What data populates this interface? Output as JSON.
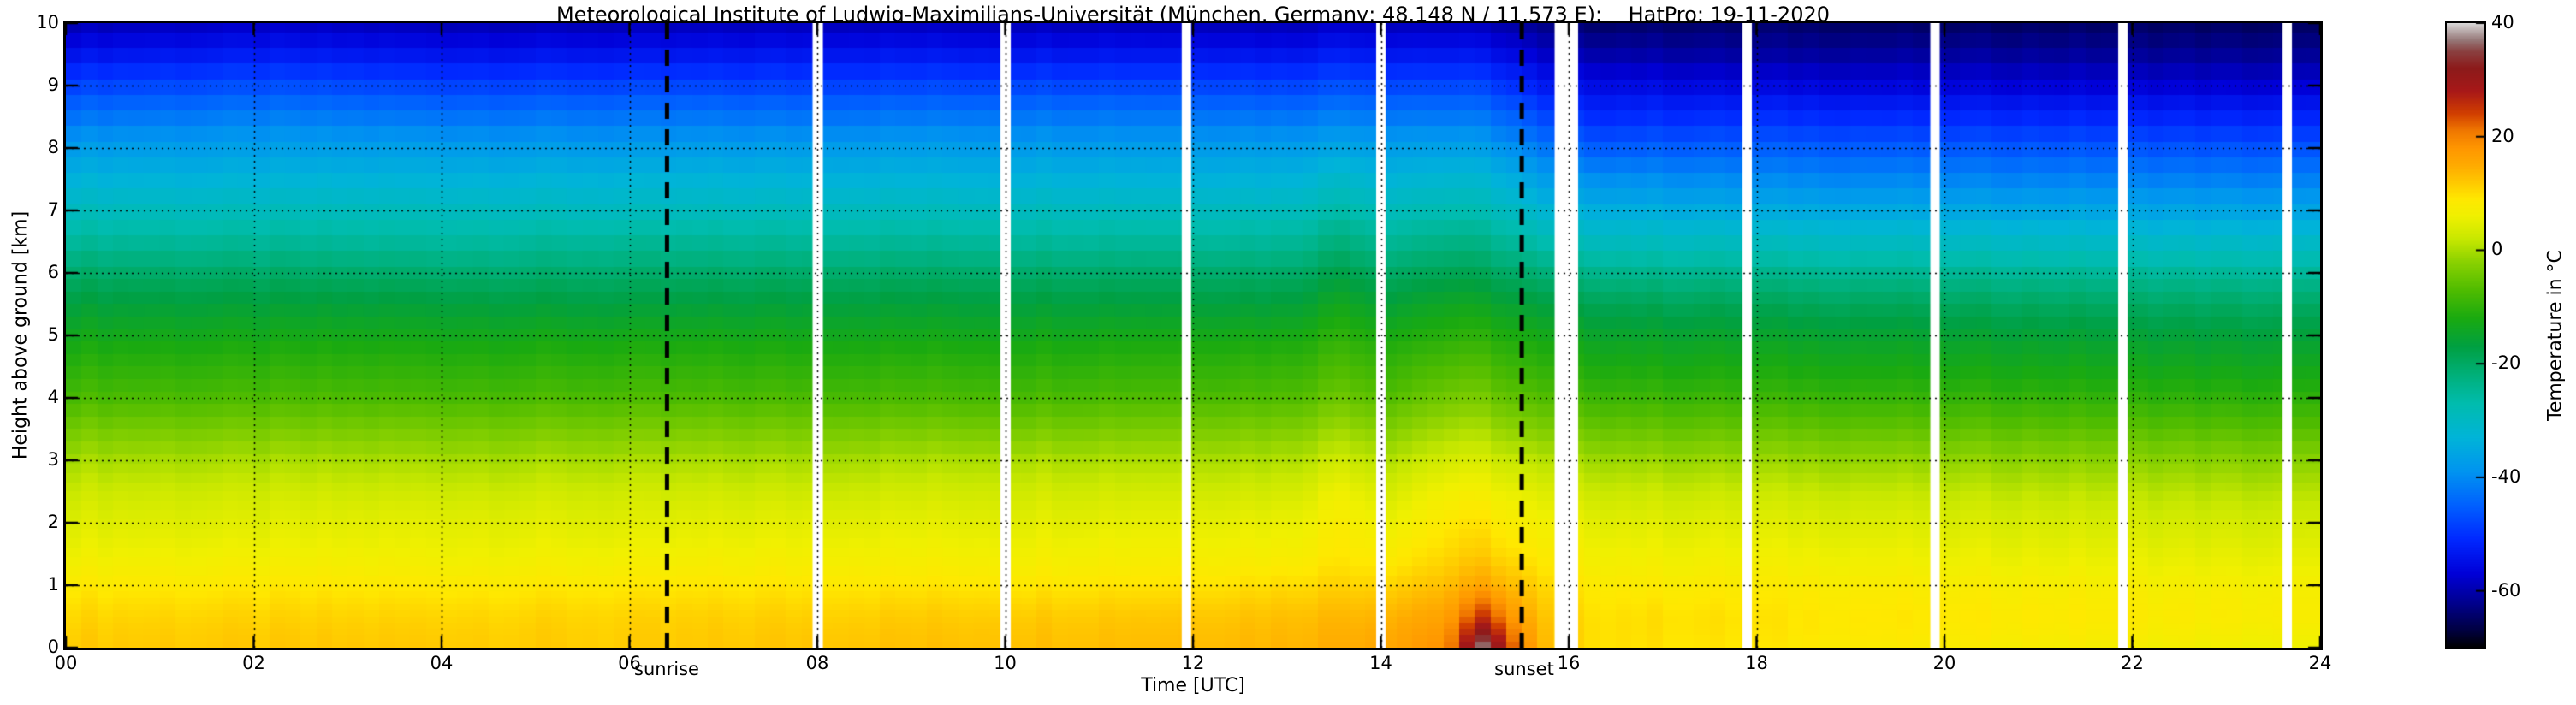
{
  "chart_data": {
    "type": "heatmap",
    "title": "Meteorological Institute of Ludwig-Maximilians-Universität (München, Germany; 48.148 N / 11.573 E):    HatPro: 19-11-2020",
    "xlabel": "Time [UTC]",
    "ylabel": "Height above ground [km]",
    "colorbar_label": "Temperature in °C",
    "sunrise_label": "sunrise",
    "sunset_label": "sunset",
    "x_range": [
      0,
      24
    ],
    "y_range": [
      0,
      10
    ],
    "value_range": [
      -70,
      40
    ],
    "sunrise_utc": 6.4,
    "sunset_utc": 15.5,
    "x_tick_values": [
      0,
      2,
      4,
      6,
      8,
      10,
      12,
      14,
      16,
      18,
      20,
      22,
      24
    ],
    "x_tick_labels": [
      "00",
      "02",
      "04",
      "06",
      "08",
      "10",
      "12",
      "14",
      "16",
      "18",
      "20",
      "22",
      "24"
    ],
    "y_tick_values": [
      0,
      1,
      2,
      3,
      4,
      5,
      6,
      7,
      8,
      9,
      10
    ],
    "y_tick_labels": [
      "0",
      "1",
      "2",
      "3",
      "4",
      "5",
      "6",
      "7",
      "8",
      "9",
      "10"
    ],
    "colorbar_tick_values": [
      40,
      20,
      0,
      -20,
      -40,
      -60
    ],
    "colorbar_tick_labels": [
      "40",
      "20",
      "0",
      "-20",
      "-40",
      "-60"
    ],
    "grid_x_lines": [
      2,
      4,
      6,
      8,
      10,
      12,
      14,
      16,
      18,
      20,
      22
    ],
    "grid_y_lines": [
      1,
      2,
      3,
      4,
      5,
      6,
      7,
      8,
      9
    ],
    "data_gaps_utc": [
      [
        7.95,
        8.06
      ],
      [
        9.95,
        10.06
      ],
      [
        11.88,
        11.98
      ],
      [
        13.95,
        14.05
      ],
      [
        15.85,
        16.1
      ],
      [
        17.85,
        17.95
      ],
      [
        19.85,
        19.95
      ],
      [
        21.85,
        21.95
      ],
      [
        23.6,
        23.7
      ]
    ],
    "colormap_stops": [
      [
        -70,
        "#000000"
      ],
      [
        -67,
        "#000040"
      ],
      [
        -62,
        "#000090"
      ],
      [
        -57,
        "#0000d8"
      ],
      [
        -51,
        "#0028ff"
      ],
      [
        -45,
        "#0060ff"
      ],
      [
        -39,
        "#0094f0"
      ],
      [
        -33,
        "#00b4d8"
      ],
      [
        -27,
        "#00bcae"
      ],
      [
        -22,
        "#00b07a"
      ],
      [
        -17,
        "#00a042"
      ],
      [
        -12,
        "#1aaa10"
      ],
      [
        -7,
        "#50bc00"
      ],
      [
        -2,
        "#8cd200"
      ],
      [
        2,
        "#c8e800"
      ],
      [
        6,
        "#f0f000"
      ],
      [
        9,
        "#ffe800"
      ],
      [
        12,
        "#ffc800"
      ],
      [
        15,
        "#ffaa00"
      ],
      [
        18,
        "#ff9600"
      ],
      [
        21,
        "#f07800"
      ],
      [
        24,
        "#d24000"
      ],
      [
        28,
        "#a81818"
      ],
      [
        32,
        "#8c1a1a"
      ],
      [
        35,
        "#8a4040"
      ],
      [
        37,
        "#967878"
      ],
      [
        40,
        "#d8d8d8"
      ]
    ],
    "grid": {
      "times": [
        0,
        2,
        4,
        6,
        8,
        10,
        12,
        13,
        13.6,
        14.1,
        14.7,
        15.1,
        15.45,
        15.8,
        16.3,
        17,
        18,
        20,
        22,
        24
      ],
      "heights_km": [
        0,
        0.5,
        1,
        1.5,
        2,
        2.5,
        3,
        3.5,
        4,
        4.5,
        5,
        5.5,
        6,
        6.5,
        7,
        7.5,
        8,
        8.5,
        9,
        9.5,
        10
      ],
      "temps_c": [
        [
          12,
          10.5,
          9,
          6.5,
          4,
          2,
          0,
          -3,
          -7,
          -10.5,
          -14,
          -17,
          -20,
          -24,
          -28,
          -33,
          -38,
          -44,
          -49,
          -54,
          -58
        ],
        [
          12,
          10.5,
          9,
          6.5,
          4,
          2,
          0,
          -3,
          -7,
          -10.5,
          -14,
          -17,
          -20,
          -24,
          -28,
          -33,
          -38,
          -43,
          -48,
          -53,
          -57
        ],
        [
          12,
          10.5,
          9,
          6.5,
          4.5,
          2,
          0,
          -3,
          -7,
          -10.5,
          -14,
          -17,
          -20.5,
          -24.5,
          -28,
          -33,
          -38,
          -44,
          -49,
          -54,
          -58
        ],
        [
          11.5,
          10.5,
          9,
          6.5,
          4,
          2,
          0,
          -3,
          -7,
          -10.5,
          -14,
          -17.5,
          -20.5,
          -24,
          -28.5,
          -33,
          -38.5,
          -44,
          -49,
          -54,
          -58
        ],
        [
          12.5,
          11,
          9.5,
          7,
          4.5,
          2,
          0,
          -3,
          -7,
          -10.5,
          -14,
          -17,
          -20,
          -24,
          -28,
          -33,
          -38,
          -44,
          -49,
          -53.5,
          -57.5
        ],
        [
          13,
          11.5,
          9.5,
          7,
          4.5,
          2.5,
          0.5,
          -3,
          -7,
          -10.5,
          -14,
          -17,
          -20,
          -24,
          -28,
          -33,
          -38,
          -43.5,
          -48.5,
          -53.5,
          -57.5
        ],
        [
          13.5,
          12,
          10,
          7.5,
          5,
          2.5,
          0.5,
          -2.5,
          -6.5,
          -10,
          -13.5,
          -17,
          -20,
          -24,
          -28,
          -33,
          -38,
          -43.5,
          -48.5,
          -53.5,
          -57.5
        ],
        [
          14,
          12.5,
          10.5,
          7.5,
          5,
          2.5,
          0.5,
          -2.5,
          -6.5,
          -10,
          -13.5,
          -17,
          -20,
          -24,
          -28,
          -33,
          -38,
          -44,
          -49,
          -54,
          -58
        ],
        [
          15,
          13.5,
          11.5,
          9.5,
          7.5,
          5.5,
          3,
          0,
          -4,
          -7.5,
          -11,
          -14,
          -17,
          -21,
          -25.5,
          -30.5,
          -36.5,
          -42.5,
          -47.5,
          -52.5,
          -56.5
        ],
        [
          16,
          14,
          11.5,
          8.5,
          5.5,
          3,
          1,
          -2,
          -6,
          -9.5,
          -13,
          -16.5,
          -19.5,
          -23.5,
          -27.5,
          -32.5,
          -37.5,
          -43.5,
          -48.5,
          -53.5,
          -57.5
        ],
        [
          19,
          16,
          13.5,
          11,
          8.5,
          6,
          3.5,
          0.5,
          -3.5,
          -7.5,
          -11.5,
          -14.5,
          -18,
          -22,
          -26.5,
          -31.5,
          -37.5,
          -43.5,
          -48.5,
          -53.5,
          -57.5
        ],
        [
          38,
          25,
          16,
          12,
          9,
          6,
          3.5,
          0.5,
          -3.5,
          -7.5,
          -11.5,
          -15,
          -18.5,
          -22.5,
          -27,
          -32,
          -38,
          -44,
          -49,
          -54,
          -58
        ],
        [
          21,
          16,
          13,
          10,
          7,
          4.5,
          2,
          -1.5,
          -5.5,
          -9.5,
          -13,
          -16.5,
          -20,
          -24.5,
          -29,
          -34.5,
          -40.5,
          -46.5,
          -51.5,
          -56,
          -59.5
        ],
        [
          12,
          11,
          10,
          8,
          5.5,
          3,
          0.5,
          -3,
          -7,
          -11,
          -14.5,
          -18,
          -22,
          -27,
          -32,
          -38,
          -44,
          -50,
          -55,
          -59,
          -62
        ],
        [
          10,
          9.5,
          9,
          7,
          4.5,
          2,
          -0.5,
          -4,
          -8,
          -12,
          -15.5,
          -19,
          -23,
          -28,
          -33,
          -39,
          -46,
          -52,
          -56,
          -60,
          -63
        ],
        [
          9.5,
          9.5,
          8.5,
          6.5,
          4,
          1.5,
          -1,
          -4.5,
          -8.5,
          -12.5,
          -16,
          -19.5,
          -23.5,
          -28.5,
          -33.5,
          -39.5,
          -46,
          -52,
          -56.5,
          -60.5,
          -63
        ],
        [
          9,
          9,
          8.5,
          6.5,
          4,
          1.5,
          -1,
          -4.5,
          -8.5,
          -12.5,
          -16,
          -19.5,
          -23.5,
          -28.5,
          -34,
          -40,
          -46,
          -52,
          -57,
          -61,
          -63
        ],
        [
          8,
          8.5,
          8,
          6,
          3.5,
          1,
          -1.5,
          -5,
          -9,
          -13,
          -16.5,
          -20,
          -24,
          -29,
          -34.5,
          -40.5,
          -46.5,
          -52.5,
          -57.5,
          -61,
          -63.5
        ],
        [
          7,
          8,
          7.5,
          5.5,
          3,
          0.5,
          -2,
          -5.5,
          -9.5,
          -13.5,
          -17,
          -20.5,
          -24.5,
          -29.5,
          -35,
          -41,
          -47,
          -53,
          -58,
          -61.5,
          -63.5
        ],
        [
          5.5,
          7,
          7,
          5,
          2.5,
          0,
          -2.5,
          -6,
          -10,
          -14,
          -17.5,
          -21,
          -25,
          -30,
          -35.5,
          -41.5,
          -47.5,
          -53.5,
          -58.5,
          -62,
          -64
        ]
      ]
    },
    "colors": {
      "background": "#ffffff",
      "frame": "#000000",
      "text": "#000000",
      "gap_line": "#ffffff",
      "sun_line": "#000000",
      "grid_line": "#000000"
    }
  }
}
